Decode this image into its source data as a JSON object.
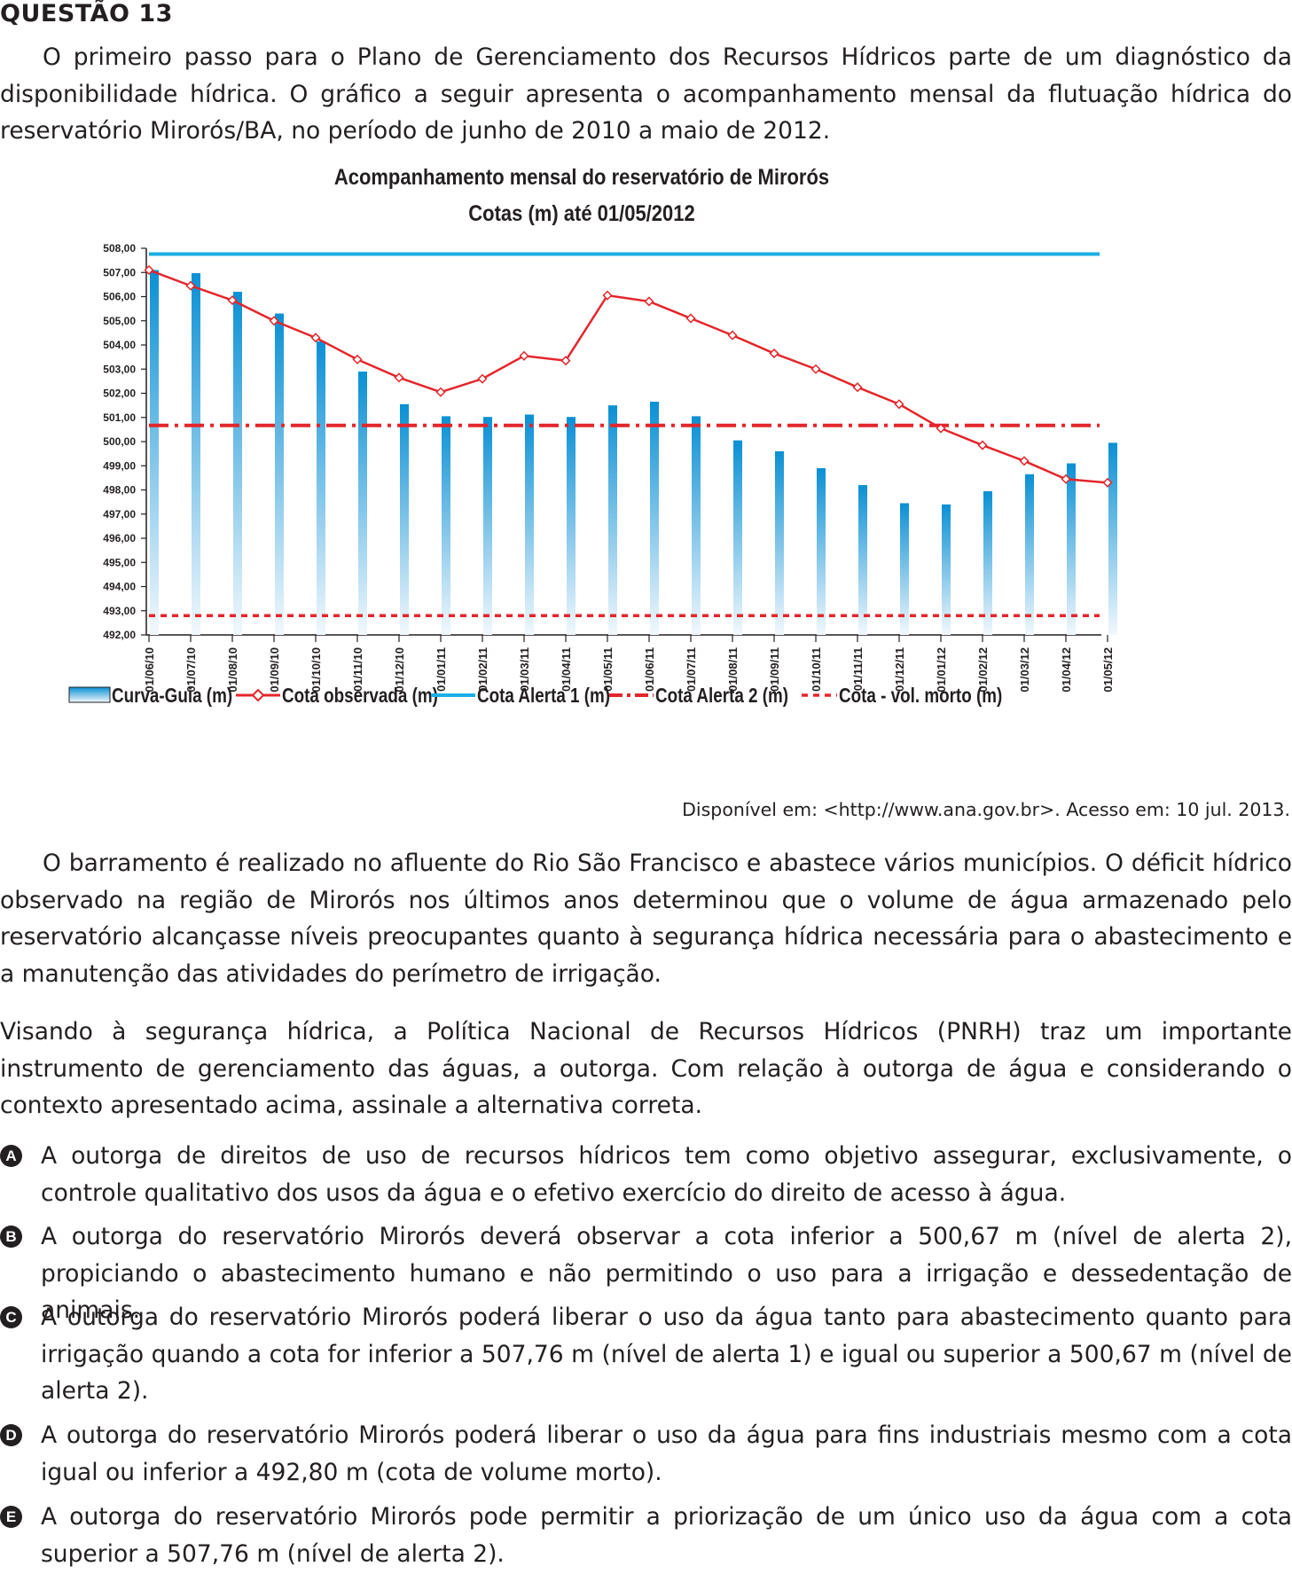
{
  "question_title": "QUESTÃO 13",
  "intro": "O primeiro passo para o Plano de Gerenciamento dos Recursos Hídricos parte de um diagnóstico da disponibilidade hídrica. O gráfico a seguir apresenta o acompanhamento mensal da flutuação hídrica do reservatório Mirorós/BA, no período de junho de 2010 a maio de 2012.",
  "source": "Disponível em: <http://www.ana.gov.br>. Acesso em: 10 jul. 2013.",
  "paragraph2": "O barramento é realizado no afluente do Rio São Francisco e abastece vários municípios. O déficit hídrico observado na região de Mirorós nos últimos anos determinou que o volume de água armazenado pelo reservatório alcançasse níveis preocupantes quanto à segurança hídrica necessária para o abastecimento e a manutenção das atividades do perímetro de irrigação.",
  "paragraph3": "Visando à segurança hídrica, a Política Nacional de Recursos Hídricos (PNRH) traz um importante instrumento de gerenciamento das águas, a outorga. Com relação à outorga de água e considerando o contexto apresentado acima, assinale a alternativa correta.",
  "options": [
    {
      "letter": "A",
      "text": "A outorga de direitos de uso de recursos hídricos tem como objetivo assegurar, exclusivamente, o controle qualitativo dos usos da água e o efetivo exercício do direito de acesso à água."
    },
    {
      "letter": "B",
      "text": "A outorga do reservatório Mirorós deverá observar a cota inferior a 500,67 m (nível de alerta 2), propiciando o abastecimento humano e não permitindo o uso para a irrigação e dessedentação de animais."
    },
    {
      "letter": "C",
      "text": "A outorga do reservatório Mirorós poderá liberar o uso da água tanto para abastecimento quanto para irrigação quando a cota for inferior a 507,76 m (nível de alerta 1) e igual ou superior a 500,67 m (nível de alerta 2)."
    },
    {
      "letter": "D",
      "text": "A outorga do reservatório Mirorós poderá liberar o uso da água para fins industriais mesmo com a cota igual ou inferior a 492,80 m (cota de volume morto)."
    },
    {
      "letter": "E",
      "text": "A outorga do reservatório Mirorós pode permitir a priorização de um único uso da água com a cota superior a 507,76 m (nível de alerta 2)."
    }
  ],
  "colors": {
    "bar_top": "#0a90d4",
    "bar_bottom": "#f2f8fd",
    "observed": "#e3262b",
    "alert1": "#1aaee4",
    "alert2": "#e3262b",
    "dead_volume": "#e3262b",
    "axis": "#231f20"
  },
  "chart_data": {
    "type": "bar",
    "title": "Acompanhamento mensal do reservatório de Mirorós",
    "subtitle": "Cotas (m) até 01/05/2012",
    "categories": [
      "01/06/10",
      "01/07/10",
      "01/08/10",
      "01/09/10",
      "01/10/10",
      "01/11/10",
      "01/12/10",
      "01/01/11",
      "01/02/11",
      "01/03/11",
      "01/04/11",
      "01/05/11",
      "01/06/11",
      "01/07/11",
      "01/08/11",
      "01/09/11",
      "01/10/11",
      "01/11/11",
      "01/12/11",
      "01/01/12",
      "01/02/12",
      "01/03/12",
      "01/04/12",
      "01/05/12"
    ],
    "y_ticks": [
      "508,00",
      "507,00",
      "506,00",
      "505,00",
      "504,00",
      "503,00",
      "502,00",
      "501,00",
      "500,00",
      "499,00",
      "498,00",
      "497,00",
      "496,00",
      "495,00",
      "494,00",
      "493,00",
      "492,00"
    ],
    "ylim": [
      492,
      508
    ],
    "series": [
      {
        "name": "Curva-Guia (m)",
        "type": "bar",
        "values": [
          507.1,
          506.97,
          506.2,
          505.3,
          504.15,
          502.9,
          501.55,
          501.05,
          501.02,
          501.12,
          501.02,
          501.5,
          501.65,
          501.05,
          500.05,
          499.6,
          498.9,
          498.2,
          497.45,
          497.4,
          497.95,
          498.65,
          499.1,
          499.95
        ]
      },
      {
        "name": "Cota observada (m)",
        "type": "line",
        "values": [
          507.1,
          506.45,
          505.85,
          505.0,
          504.3,
          503.4,
          502.65,
          502.05,
          502.6,
          503.55,
          503.35,
          506.05,
          505.8,
          505.1,
          504.4,
          503.65,
          503.0,
          502.25,
          501.55,
          500.55,
          499.85,
          499.2,
          498.45,
          498.3
        ]
      },
      {
        "name": "Cota Alerta 1 (m)",
        "type": "hline",
        "value": 507.76
      },
      {
        "name": "Cota Alerta 2 (m)",
        "type": "hline",
        "value": 500.67
      },
      {
        "name": "Cota - vol. morto (m)",
        "type": "hline",
        "value": 492.8
      }
    ],
    "legend_position": "bottom",
    "grid": false
  }
}
